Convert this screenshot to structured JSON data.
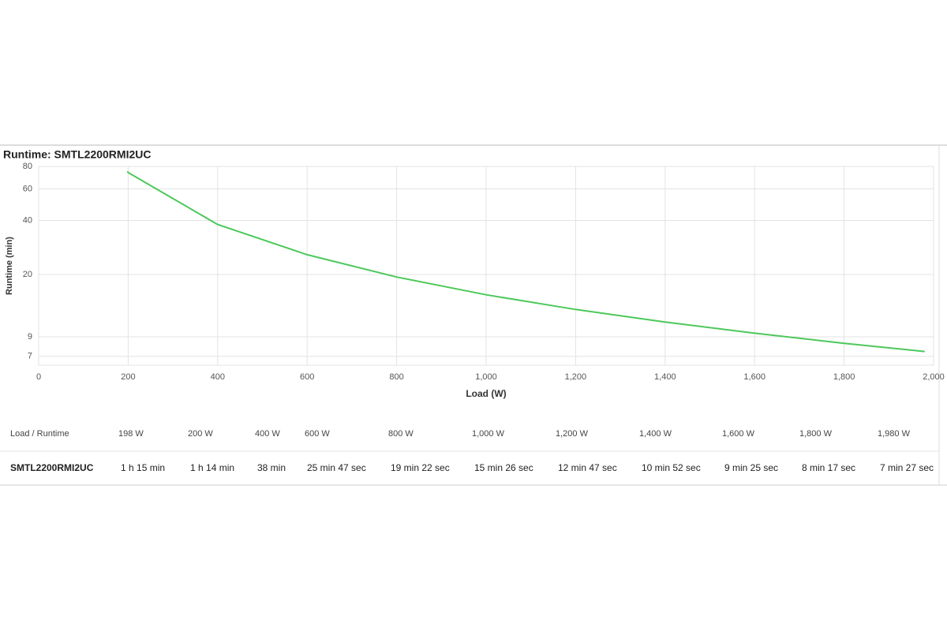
{
  "chart_data": {
    "type": "line",
    "title": "Runtime: SMTL2200RMI2UC",
    "x_label": "Load (W)",
    "y_label": "Runtime (min)",
    "x": [
      198,
      200,
      400,
      600,
      800,
      1000,
      1200,
      1400,
      1600,
      1800,
      1980
    ],
    "values": [
      75,
      74,
      38,
      25.78,
      19.37,
      15.43,
      12.78,
      10.87,
      9.42,
      8.28,
      7.45
    ],
    "color": "#4cc85a",
    "ylog": true,
    "grid": true,
    "xlim": [
      0,
      2000
    ],
    "xticks": [
      0,
      200,
      400,
      600,
      800,
      {
        "value": 1000,
        "label": "1,000"
      },
      {
        "value": 1200,
        "label": "1,200"
      },
      {
        "value": 1400,
        "label": "1,400"
      },
      {
        "value": 1600,
        "label": "1,600"
      },
      {
        "value": 1800,
        "label": "1,800"
      },
      {
        "value": 2000,
        "label": "2,000"
      }
    ],
    "ylim": [
      6.25,
      80
    ],
    "yticks": [
      7,
      9,
      20,
      40,
      60,
      80
    ]
  },
  "table": {
    "header": [
      "Load / Runtime",
      "198 W",
      "200 W",
      "400 W",
      "600 W",
      "800 W",
      "1,000 W",
      "1,200 W",
      "1,400 W",
      "1,600 W",
      "1,800 W",
      "1,980 W"
    ],
    "rows": [
      [
        "SMTL2200RMI2UC",
        "1 h 15 min",
        "1 h 14 min",
        "38 min",
        "25 min 47 sec",
        "19 min 22 sec",
        "15 min 26 sec",
        "12 min 47 sec",
        "10 min 52 sec",
        "9 min 25 sec",
        "8 min 17 sec",
        "7 min 27 sec"
      ]
    ]
  }
}
